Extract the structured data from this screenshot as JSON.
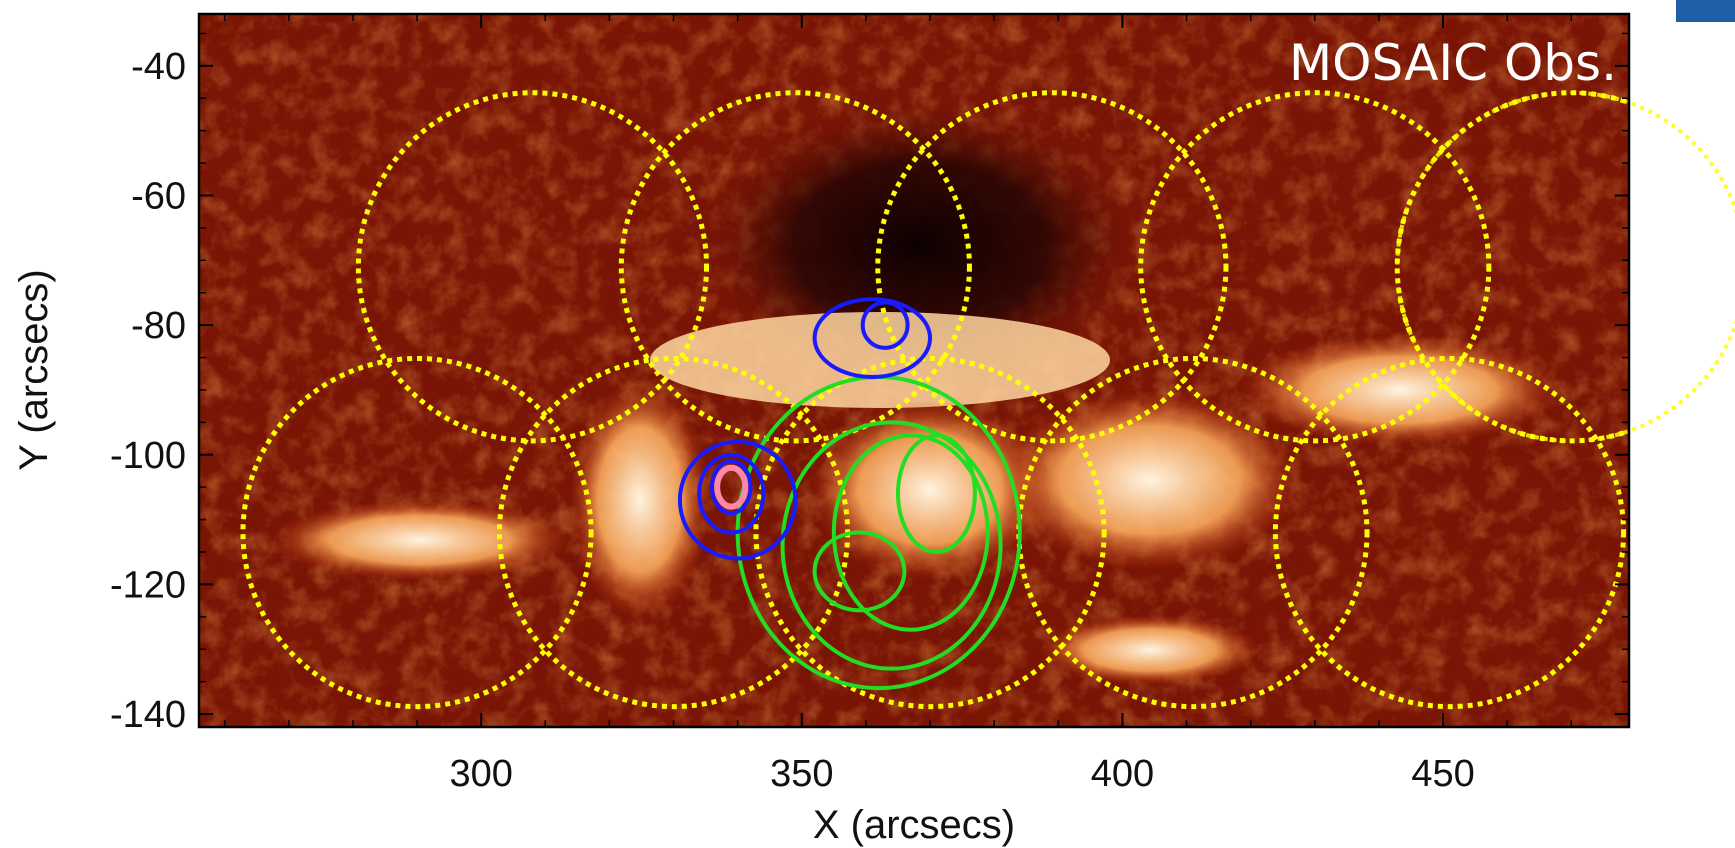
{
  "chart_data": {
    "type": "image",
    "title": "",
    "annotation": "MOSAIC Obs.",
    "xlabel": "X (arcsecs)",
    "ylabel": "Y (arcsecs)",
    "xlim": [
      256,
      479
    ],
    "ylim": [
      -142,
      -32
    ],
    "x_ticks": [
      300,
      350,
      400,
      450
    ],
    "y_ticks": [
      -40,
      -60,
      -80,
      -100,
      -120,
      -140
    ],
    "x_tick_labels": [
      "300",
      "350",
      "400",
      "450"
    ],
    "y_tick_labels": [
      "-40",
      "-60",
      "-80",
      "-100",
      "-120",
      "-140"
    ],
    "grid": false,
    "colors": {
      "background_map": "#7a1505",
      "flare_ribbon": "#ffe0b0",
      "field_of_view": "#ffff00",
      "blue_contours": "#1a1aff",
      "green_contours": "#22dd22",
      "pink_contours": "#ff88aa"
    },
    "field_of_view_circles": [
      {
        "center": [
          308,
          -71
        ],
        "radius": 27
      },
      {
        "center": [
          349,
          -71
        ],
        "radius": 27
      },
      {
        "center": [
          389,
          -71
        ],
        "radius": 27
      },
      {
        "center": [
          430,
          -71
        ],
        "radius": 27
      },
      {
        "center": [
          470,
          -71
        ],
        "radius": 27
      },
      {
        "center": [
          290,
          -112
        ],
        "radius": 27
      },
      {
        "center": [
          330,
          -112
        ],
        "radius": 27
      },
      {
        "center": [
          370,
          -112
        ],
        "radius": 27
      },
      {
        "center": [
          411,
          -112
        ],
        "radius": 27
      },
      {
        "center": [
          451,
          -112
        ],
        "radius": 27
      }
    ],
    "blue_contours": [
      {
        "center": [
          361,
          -82
        ],
        "rx": 9,
        "ry": 6
      },
      {
        "center": [
          363,
          -80
        ],
        "rx": 3.5,
        "ry": 3.5
      },
      {
        "center": [
          340,
          -107
        ],
        "rx": 9,
        "ry": 9
      },
      {
        "center": [
          339,
          -106
        ],
        "rx": 5,
        "ry": 6
      },
      {
        "center": [
          339,
          -105
        ],
        "rx": 3,
        "ry": 4
      }
    ],
    "green_contours": [
      {
        "center": [
          362,
          -112
        ],
        "rx": 22,
        "ry": 24
      },
      {
        "center": [
          364,
          -114
        ],
        "rx": 17,
        "ry": 19
      },
      {
        "center": [
          367,
          -112
        ],
        "rx": 12,
        "ry": 15
      },
      {
        "center": [
          371,
          -106
        ],
        "rx": 6,
        "ry": 9
      },
      {
        "center": [
          359,
          -118
        ],
        "rx": 7,
        "ry": 6
      }
    ],
    "pink_contours": [
      {
        "center": [
          339,
          -105
        ],
        "rx": 2.2,
        "ry": 3
      }
    ]
  }
}
